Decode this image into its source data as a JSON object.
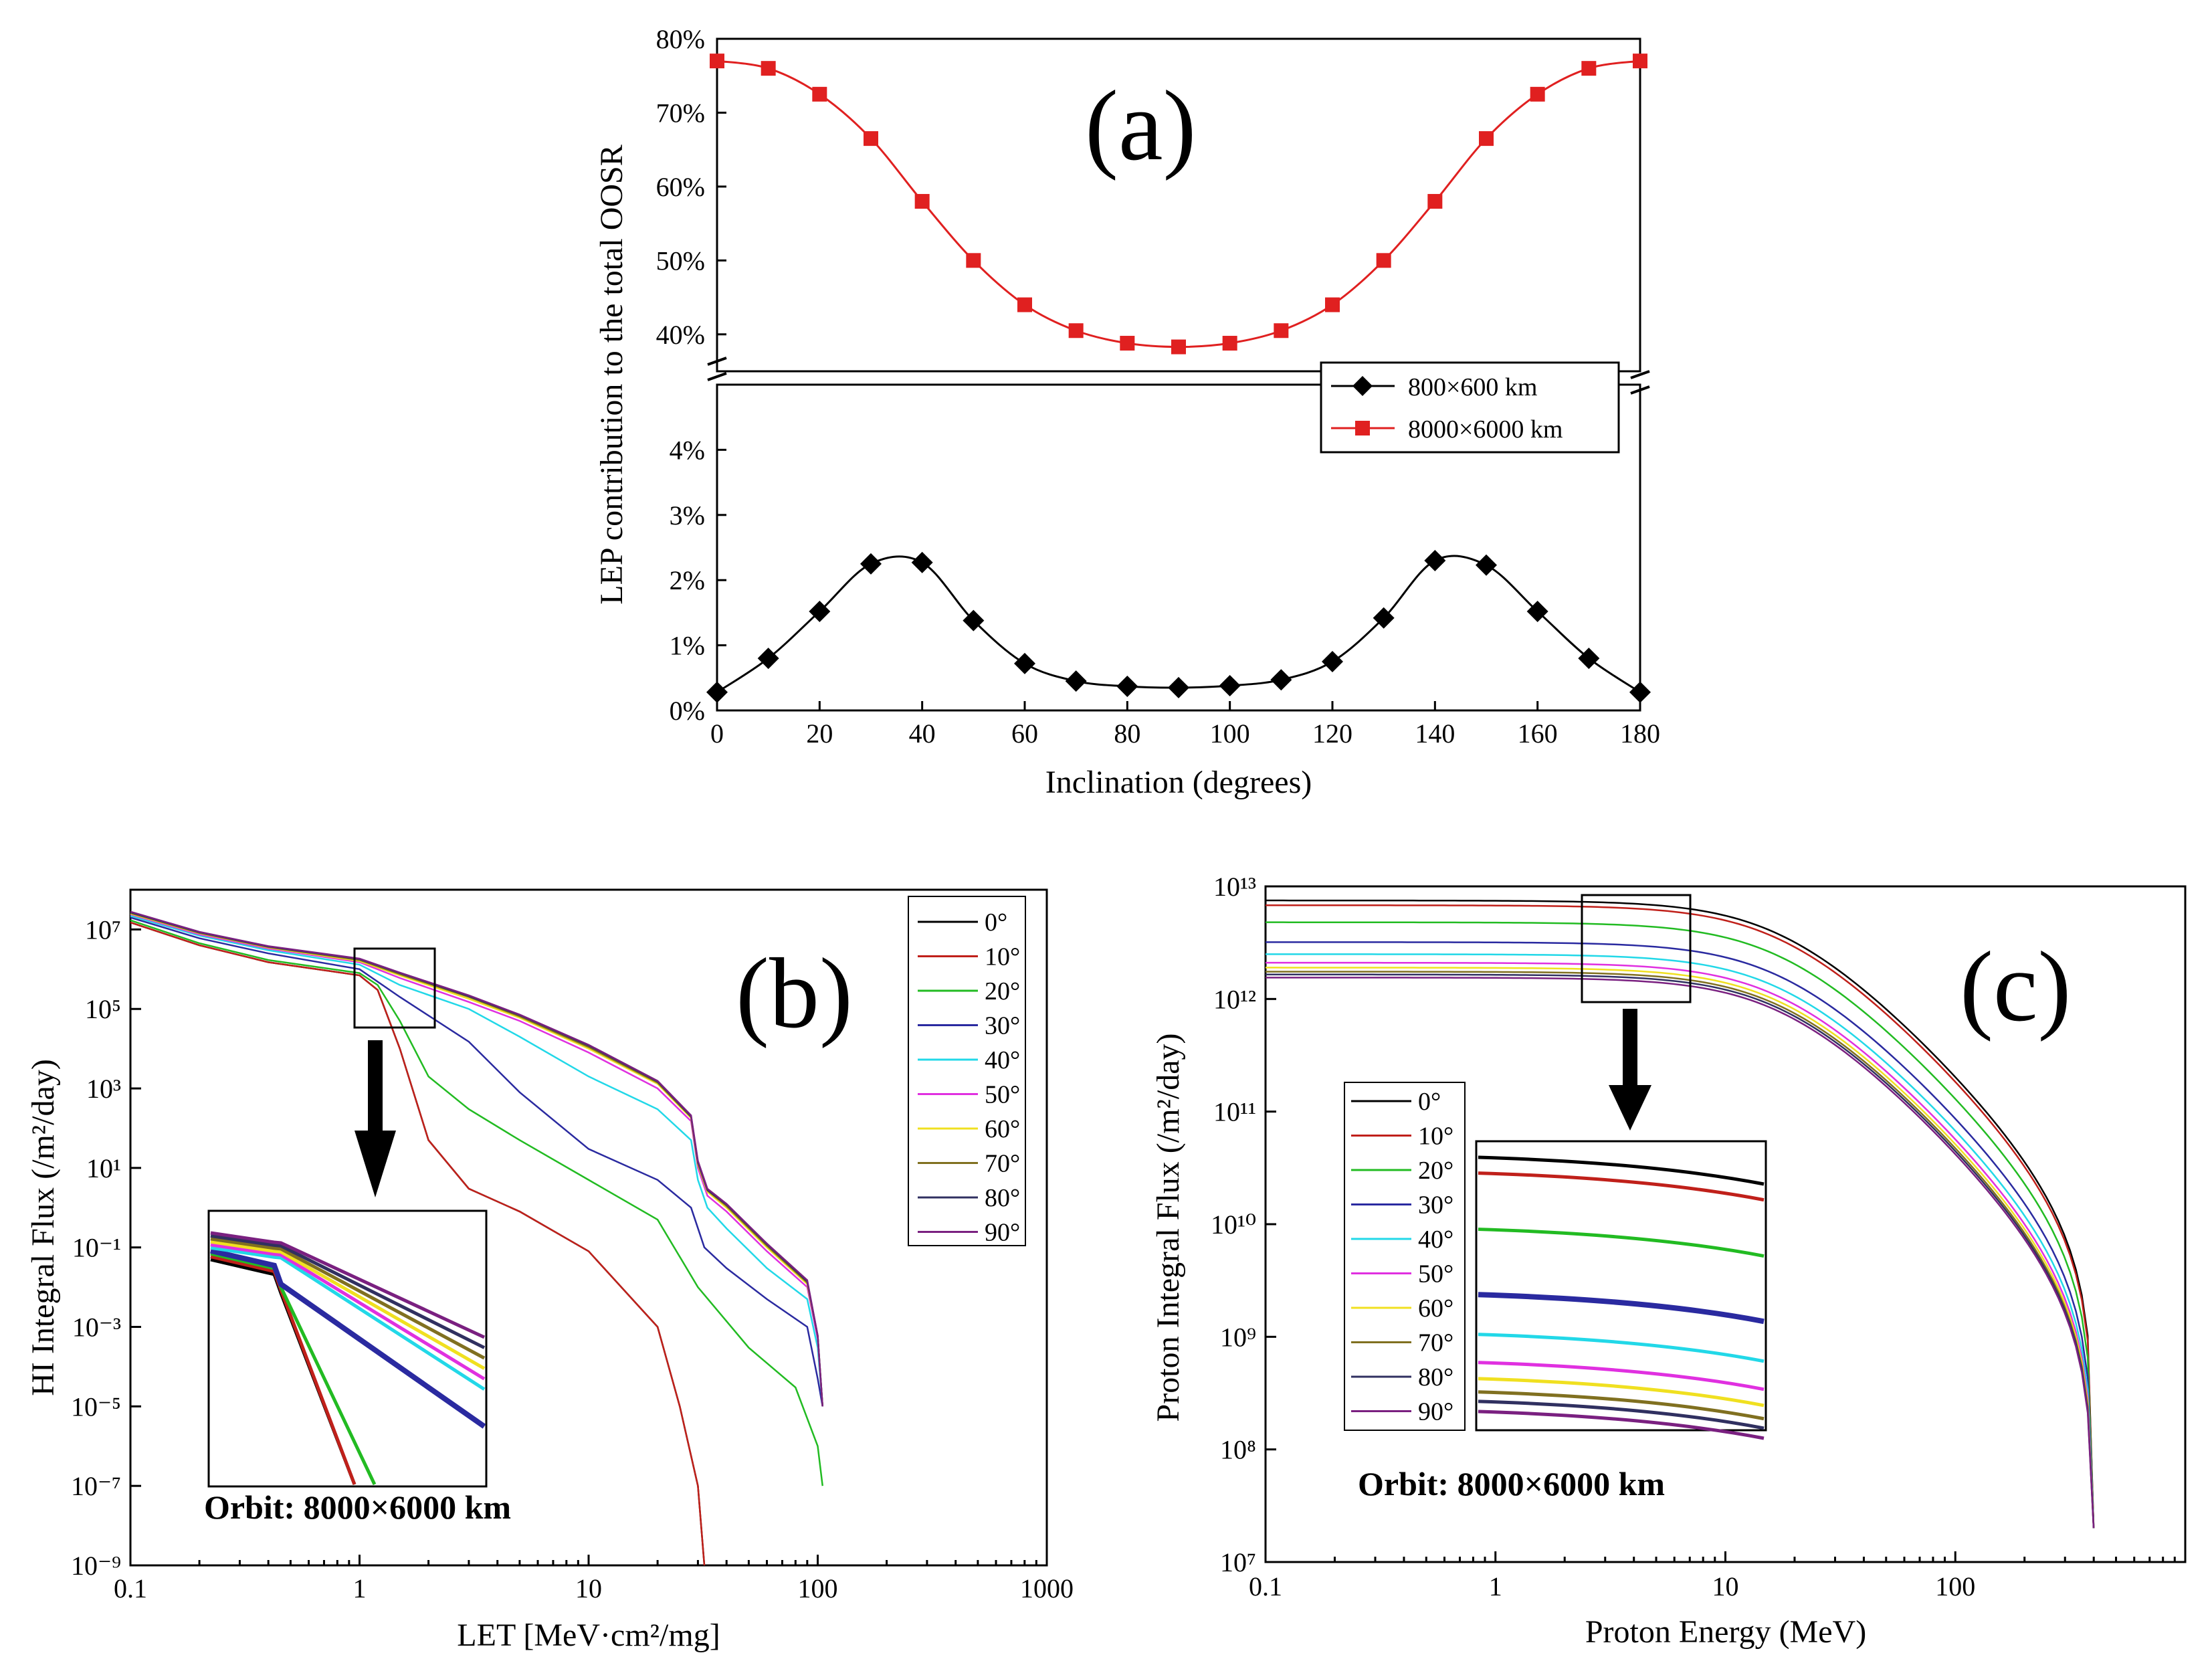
{
  "chart_data": [
    {
      "panel": "(a)",
      "type": "line",
      "xlabel": "Inclination (degrees)",
      "ylabel": "LEP contribution to the total OOSR",
      "xlim": [
        0,
        180
      ],
      "x_ticks": [
        "0",
        "20",
        "40",
        "60",
        "80",
        "100",
        "120",
        "140",
        "160",
        "180"
      ],
      "y_ticks_upper": [
        "40%",
        "50%",
        "60%",
        "70%",
        "80%"
      ],
      "y_ticks_lower": [
        "0%",
        "1%",
        "2%",
        "3%",
        "4%"
      ],
      "ylim_lower": [
        0,
        5
      ],
      "ylim_upper": [
        35,
        80
      ],
      "axis_break": true,
      "legend_position": "right-middle",
      "series": [
        {
          "name": "800×600 km",
          "color": "#000000",
          "marker": "diamond",
          "x": [
            0,
            10,
            20,
            30,
            40,
            50,
            60,
            70,
            80,
            90,
            100,
            110,
            120,
            130,
            140,
            150,
            160,
            170,
            180
          ],
          "values": [
            0.28,
            0.8,
            1.52,
            2.25,
            2.27,
            1.38,
            0.72,
            0.45,
            0.37,
            0.35,
            0.38,
            0.47,
            0.75,
            1.42,
            2.3,
            2.23,
            1.52,
            0.8,
            0.28
          ]
        },
        {
          "name": "8000×6000 km",
          "color": "#e02020",
          "marker": "square",
          "x": [
            0,
            10,
            20,
            30,
            40,
            50,
            60,
            70,
            80,
            90,
            100,
            110,
            120,
            130,
            140,
            150,
            160,
            170,
            180
          ],
          "values": [
            77,
            76,
            72.5,
            66.5,
            58,
            50,
            44,
            40.5,
            38.8,
            38.3,
            38.8,
            40.5,
            44,
            50,
            58,
            66.5,
            72.5,
            76,
            77
          ]
        }
      ]
    },
    {
      "panel": "(b)",
      "type": "line",
      "xlabel": "LET [MeV·cm²/mg]",
      "ylabel": "HI Integral Flux (/m²/day)",
      "xscale": "log",
      "yscale": "log",
      "xlim": [
        0.1,
        1000
      ],
      "ylim": [
        1e-09,
        100000000.0
      ],
      "x_ticks": [
        "0.1",
        "1",
        "10",
        "100",
        "1000"
      ],
      "y_ticks": [
        "10⁻⁹",
        "10⁻⁷",
        "10⁻⁵",
        "10⁻³",
        "10⁻¹",
        "10¹",
        "10³",
        "10⁵",
        "10⁷"
      ],
      "inset_note": "Orbit: 8000×6000 km",
      "legend_position": "top-right",
      "series": [
        {
          "name": "0°",
          "color": "#000000",
          "x": [
            0.1,
            0.2,
            0.4,
            1,
            1.2,
            1.5,
            2,
            3,
            5,
            10,
            20,
            25,
            30,
            32
          ],
          "values": [
            15000000.0,
            4000000.0,
            1500000.0,
            700000.0,
            300000.0,
            10000.0,
            50,
            3,
            0.8,
            0.08,
            0.001,
            1e-05,
            1e-07,
            1e-09
          ]
        },
        {
          "name": "10°",
          "color": "#c0201a",
          "x": [
            0.1,
            0.2,
            0.4,
            1,
            1.2,
            1.5,
            2,
            3,
            5,
            10,
            20,
            25,
            30,
            32
          ],
          "values": [
            15000000.0,
            4000000.0,
            1500000.0,
            700000.0,
            300000.0,
            10000.0,
            50,
            3,
            0.8,
            0.08,
            0.001,
            1e-05,
            1e-07,
            1e-09
          ]
        },
        {
          "name": "20°",
          "color": "#22bb22",
          "x": [
            0.1,
            0.2,
            0.4,
            1,
            1.2,
            1.5,
            2,
            3,
            5,
            10,
            20,
            30,
            50,
            80,
            100,
            105
          ],
          "values": [
            17000000.0,
            4500000.0,
            1700000.0,
            800000.0,
            400000.0,
            50000.0,
            2000.0,
            300,
            50,
            5,
            0.5,
            0.01,
            0.0003,
            3e-05,
            1e-06,
            1e-07
          ]
        },
        {
          "name": "30°",
          "color": "#2a2aa0",
          "x": [
            0.1,
            0.2,
            0.4,
            1,
            1.5,
            3,
            5,
            10,
            20,
            28,
            32,
            40,
            60,
            90,
            100,
            105
          ],
          "values": [
            20000000.0,
            6000000.0,
            2500000.0,
            1000000.0,
            200000.0,
            15000.0,
            800,
            30,
            5,
            1,
            0.1,
            0.03,
            0.005,
            0.001,
            5e-05,
            1e-05
          ]
        },
        {
          "name": "40°",
          "color": "#22d8e8",
          "x": [
            0.1,
            0.2,
            0.4,
            1,
            1.5,
            3,
            5,
            10,
            20,
            28,
            30,
            33,
            40,
            60,
            90,
            100,
            105
          ],
          "values": [
            22000000.0,
            7000000.0,
            3000000.0,
            1300000.0,
            400000.0,
            100000.0,
            20000.0,
            2000.0,
            300,
            50,
            5,
            1,
            0.3,
            0.03,
            0.005,
            0.0003,
            1e-05
          ]
        },
        {
          "name": "50°",
          "color": "#e030e0",
          "x": [
            0.1,
            0.2,
            0.4,
            1,
            1.5,
            3,
            5,
            10,
            20,
            28,
            30,
            33,
            40,
            60,
            90,
            100,
            105
          ],
          "values": [
            24000000.0,
            7500000.0,
            3300000.0,
            1500000.0,
            600000.0,
            150000.0,
            50000.0,
            8000.0,
            1000.0,
            150,
            10,
            2,
            0.8,
            0.08,
            0.01,
            0.0005,
            1e-05
          ]
        },
        {
          "name": "60°",
          "color": "#f0e020",
          "x": [
            0.1,
            0.2,
            0.4,
            1,
            1.5,
            3,
            5,
            10,
            20,
            28,
            30,
            33,
            40,
            60,
            90,
            100,
            105
          ],
          "values": [
            25000000.0,
            8000000.0,
            3500000.0,
            1600000.0,
            700000.0,
            180000.0,
            60000.0,
            10000.0,
            1300.0,
            180,
            12,
            2.5,
            1,
            0.1,
            0.012,
            0.0006,
            1e-05
          ]
        },
        {
          "name": "70°",
          "color": "#807020",
          "x": [
            0.1,
            0.2,
            0.4,
            1,
            1.5,
            3,
            5,
            10,
            20,
            28,
            30,
            33,
            40,
            60,
            90,
            100,
            105
          ],
          "values": [
            26000000.0,
            8200000.0,
            3600000.0,
            1700000.0,
            750000.0,
            200000.0,
            65000.0,
            11000.0,
            1400.0,
            190,
            13,
            2.7,
            1.1,
            0.11,
            0.013,
            0.0006,
            1e-05
          ]
        },
        {
          "name": "80°",
          "color": "#303060",
          "x": [
            0.1,
            0.2,
            0.4,
            1,
            1.5,
            3,
            5,
            10,
            20,
            28,
            30,
            33,
            40,
            60,
            90,
            100,
            105
          ],
          "values": [
            27000000.0,
            8500000.0,
            3700000.0,
            1800000.0,
            800000.0,
            210000.0,
            70000.0,
            12000.0,
            1500.0,
            200,
            14,
            2.8,
            1.2,
            0.12,
            0.014,
            0.0006,
            1e-05
          ]
        },
        {
          "name": "90°",
          "color": "#7a2080",
          "x": [
            0.1,
            0.2,
            0.4,
            1,
            1.5,
            3,
            5,
            10,
            20,
            28,
            30,
            33,
            40,
            60,
            90,
            100,
            105
          ],
          "values": [
            28000000.0,
            8700000.0,
            3800000.0,
            1850000.0,
            820000.0,
            220000.0,
            72000.0,
            12500.0,
            1550.0,
            210,
            15,
            3,
            1.25,
            0.125,
            0.015,
            0.0006,
            1e-05
          ]
        }
      ]
    },
    {
      "panel": "(c)",
      "type": "line",
      "xlabel": "Proton Energy (MeV)",
      "ylabel": "Proton Integral Flux (/m²/day)",
      "xscale": "log",
      "yscale": "log",
      "xlim": [
        0.1,
        1000
      ],
      "ylim": [
        10000000.0,
        10000000000000.0
      ],
      "x_ticks": [
        "0.1",
        "1",
        "10",
        "100"
      ],
      "y_ticks": [
        "10⁷",
        "10⁸",
        "10⁹",
        "10¹⁰",
        "10¹¹",
        "10¹²",
        "10¹³"
      ],
      "inset_note": "Orbit: 8000×6000 km",
      "legend_position": "lower-left",
      "series": [
        {
          "name": "0°",
          "color": "#000000",
          "plateau": 7500000000000.0
        },
        {
          "name": "10°",
          "color": "#c0201a",
          "plateau": 6800000000000.0
        },
        {
          "name": "20°",
          "color": "#22bb22",
          "plateau": 4800000000000.0
        },
        {
          "name": "30°",
          "color": "#2a2aa0",
          "plateau": 3200000000000.0
        },
        {
          "name": "40°",
          "color": "#22d8e8",
          "plateau": 2500000000000.0
        },
        {
          "name": "50°",
          "color": "#e030e0",
          "plateau": 2100000000000.0
        },
        {
          "name": "60°",
          "color": "#f0e020",
          "plateau": 1900000000000.0
        },
        {
          "name": "70°",
          "color": "#807020",
          "plateau": 1750000000000.0
        },
        {
          "name": "80°",
          "color": "#303060",
          "plateau": 1650000000000.0
        },
        {
          "name": "90°",
          "color": "#7a2080",
          "plateau": 1550000000000.0
        }
      ]
    }
  ]
}
